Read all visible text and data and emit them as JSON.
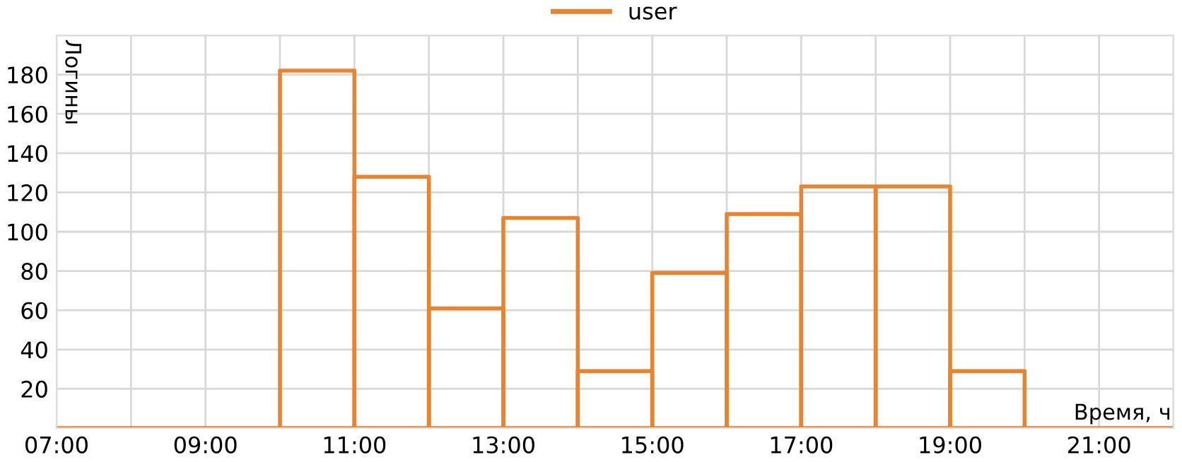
{
  "chart_data": {
    "type": "histogram",
    "xlabel": "Время, ч",
    "ylabel": "Логины",
    "bins": [
      7,
      8,
      9,
      10,
      11,
      12,
      13,
      14,
      15,
      16,
      17,
      18,
      19,
      20,
      21,
      22
    ],
    "series": [
      {
        "name": "user",
        "color": "#e8832f",
        "values": [
          0,
          0,
          0,
          182,
          128,
          61,
          107,
          29,
          79,
          109,
          123,
          123,
          29,
          0,
          0
        ]
      }
    ],
    "xlim": [
      7,
      22
    ],
    "xticks": [
      {
        "value": 7,
        "label": "07:00"
      },
      {
        "value": 8,
        "label": null
      },
      {
        "value": 9,
        "label": "09:00"
      },
      {
        "value": 10,
        "label": null
      },
      {
        "value": 11,
        "label": "11:00"
      },
      {
        "value": 12,
        "label": null
      },
      {
        "value": 13,
        "label": "13:00"
      },
      {
        "value": 14,
        "label": null
      },
      {
        "value": 15,
        "label": "15:00"
      },
      {
        "value": 16,
        "label": null
      },
      {
        "value": 17,
        "label": "17:00"
      },
      {
        "value": 18,
        "label": null
      },
      {
        "value": 19,
        "label": "19:00"
      },
      {
        "value": 20,
        "label": null
      },
      {
        "value": 21,
        "label": "21:00"
      },
      {
        "value": 22,
        "label": null
      }
    ],
    "ylim": [
      0,
      200
    ],
    "yticks": [
      {
        "value": 0,
        "label": null
      },
      20,
      40,
      60,
      80,
      100,
      120,
      140,
      160,
      180,
      {
        "value": 200,
        "label": null
      }
    ],
    "grid": true,
    "legend": "top"
  }
}
